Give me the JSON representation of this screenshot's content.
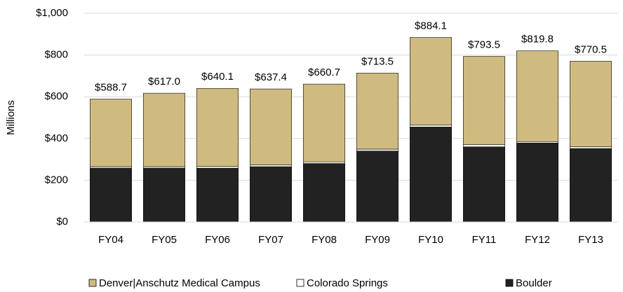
{
  "chart_data": {
    "type": "stacked_bar",
    "y_label": "Millions",
    "categories": [
      "FY04",
      "FY05",
      "FY06",
      "FY07",
      "FY08",
      "FY09",
      "FY10",
      "FY11",
      "FY12",
      "FY13"
    ],
    "series": [
      {
        "name": "Denver|Anschutz Medical Campus",
        "color": "#cfbb80",
        "values": [
          323.7,
          352.0,
          374.1,
          364.4,
          372.7,
          364.5,
          420.1,
          423.5,
          434.8,
          410.5
        ]
      },
      {
        "name": "Colorado Springs",
        "color": "#ffffff",
        "values": [
          7,
          7,
          8,
          8,
          8,
          9,
          9,
          10,
          7,
          8
        ]
      },
      {
        "name": "Boulder",
        "color": "#222222",
        "values": [
          258,
          258,
          258,
          265,
          280,
          340,
          455,
          360,
          378,
          352
        ]
      }
    ],
    "total_labels": [
      "$588.7",
      "$617.0",
      "$640.1",
      "$637.4",
      "$660.7",
      "$713.5",
      "$884.1",
      "$793.5",
      "$819.8",
      "$770.5"
    ],
    "stack_order": "reverse",
    "ylim": [
      0,
      1000
    ],
    "yticks": [
      {
        "value": 0,
        "label": "$0"
      },
      {
        "value": 200,
        "label": "$200"
      },
      {
        "value": 400,
        "label": "$400"
      },
      {
        "value": 600,
        "label": "$600"
      },
      {
        "value": 800,
        "label": "$800"
      },
      {
        "value": 1000,
        "label": "$1,000"
      }
    ],
    "grid": true
  }
}
